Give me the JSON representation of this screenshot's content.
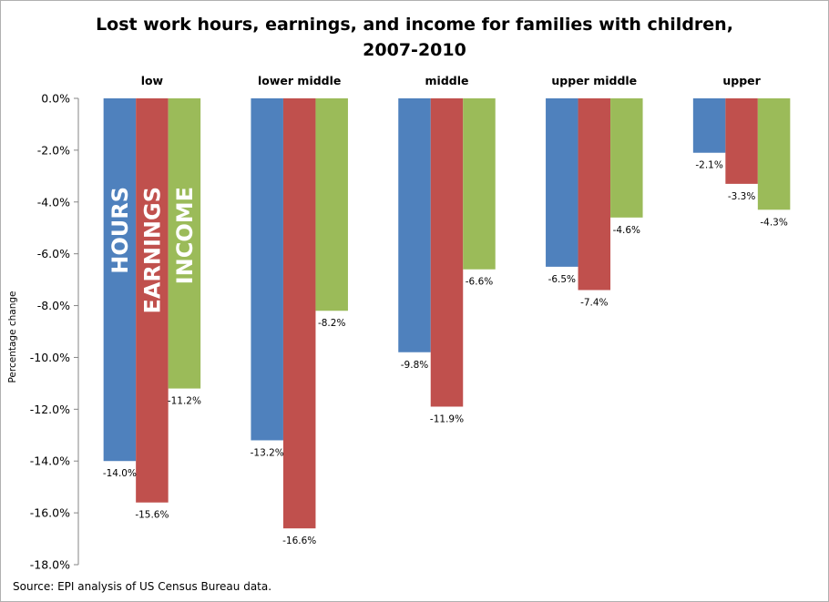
{
  "chart_data": {
    "type": "bar",
    "title_line1": "Lost work hours, earnings, and income for families with children,",
    "title_line2": "2007-2010",
    "ylabel": "Percentage change",
    "source": "Source: EPI analysis of US Census Bureau data.",
    "categories": [
      "low",
      "lower middle",
      "middle",
      "upper middle",
      "upper"
    ],
    "series": [
      {
        "name": "HOURS",
        "color": "#4F81BD",
        "values": [
          -14.0,
          -13.2,
          -9.8,
          -6.5,
          -2.1
        ],
        "labels": [
          "-14.0%",
          "-13.2%",
          "-9.8%",
          "-6.5%",
          "-2.1%"
        ]
      },
      {
        "name": "EARNINGS",
        "color": "#C0504D",
        "values": [
          -15.6,
          -16.6,
          -11.9,
          -7.4,
          -3.3
        ],
        "labels": [
          "-15.6%",
          "-16.6%",
          "-11.9%",
          "-7.4%",
          "-3.3%"
        ]
      },
      {
        "name": "INCOME",
        "color": "#9BBB59",
        "values": [
          -11.2,
          -8.2,
          -6.6,
          -4.6,
          -4.3
        ],
        "labels": [
          "-11.2%",
          "-8.2%",
          "-6.6%",
          "-4.6%",
          "-4.3%"
        ]
      }
    ],
    "y_ticks": [
      0,
      -2,
      -4,
      -6,
      -8,
      -10,
      -12,
      -14,
      -16,
      -18
    ],
    "y_tick_labels": [
      "0.0%",
      "-2.0%",
      "-4.0%",
      "-6.0%",
      "-8.0%",
      "-10.0%",
      "-12.0%",
      "-14.0%",
      "-16.0%",
      "-18.0%"
    ],
    "ylim": [
      -18,
      0
    ],
    "grid": false,
    "legend": "series names written inside the first group of bars"
  }
}
